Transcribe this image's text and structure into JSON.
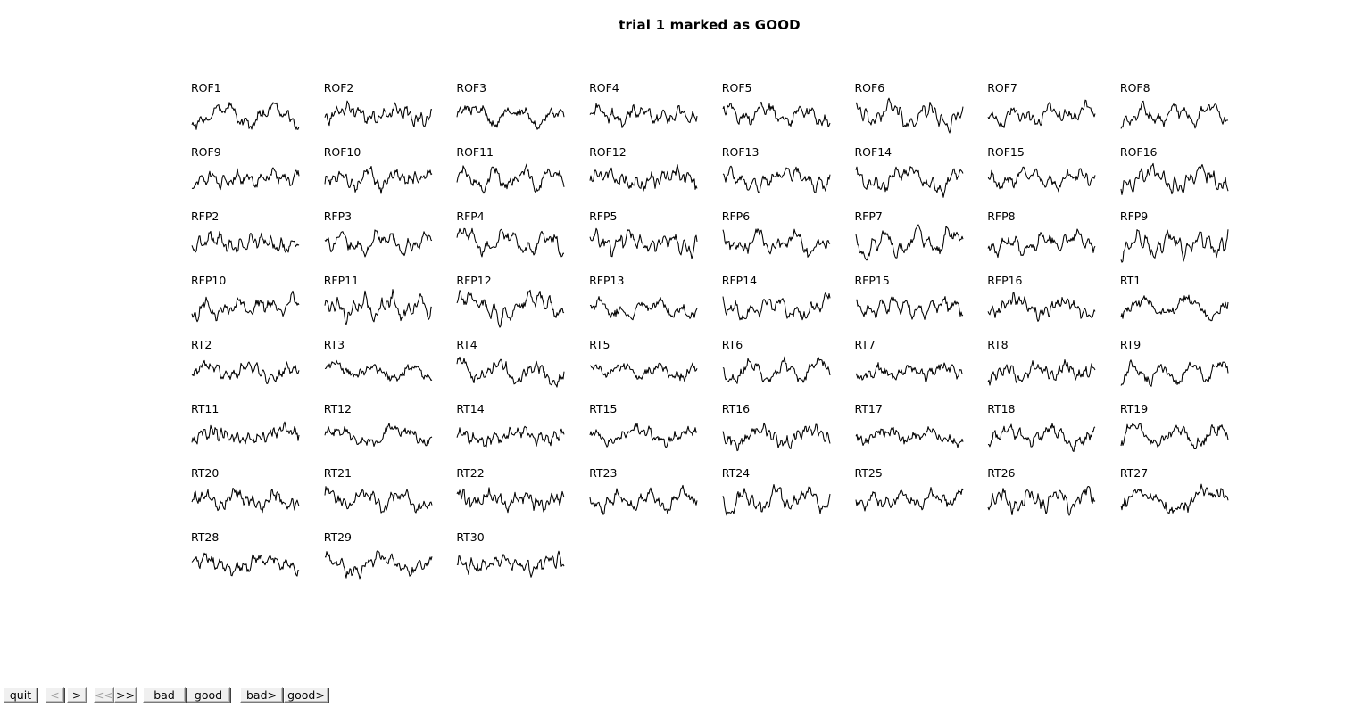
{
  "title": "trial 1 marked as GOOD",
  "channels": [
    "ROF1",
    "ROF2",
    "ROF3",
    "ROF4",
    "ROF5",
    "ROF6",
    "ROF7",
    "ROF8",
    "ROF9",
    "ROF10",
    "ROF11",
    "ROF12",
    "ROF13",
    "ROF14",
    "ROF15",
    "ROF16",
    "RFP2",
    "RFP3",
    "RFP4",
    "RFP5",
    "RFP6",
    "RFP7",
    "RFP8",
    "RFP9",
    "RFP10",
    "RFP11",
    "RFP12",
    "RFP13",
    "RFP14",
    "RFP15",
    "RFP16",
    "RT1",
    "RT2",
    "RT3",
    "RT4",
    "RT5",
    "RT6",
    "RT7",
    "RT8",
    "RT9",
    "RT11",
    "RT12",
    "RT14",
    "RT15",
    "RT16",
    "RT17",
    "RT18",
    "RT19",
    "RT20",
    "RT21",
    "RT22",
    "RT23",
    "RT24",
    "RT25",
    "RT26",
    "RT27",
    "RT28",
    "RT29",
    "RT30"
  ],
  "toolbar": {
    "quit": "quit",
    "prev": "<",
    "next": ">",
    "first": "<<",
    "last": ">>",
    "bad": "bad",
    "good": "good",
    "bad_next": "bad>",
    "good_next": "good>"
  }
}
